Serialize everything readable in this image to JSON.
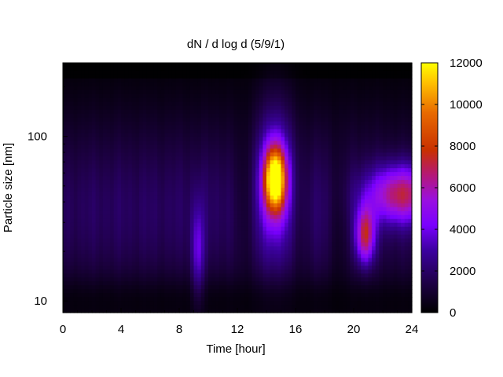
{
  "chart_data": {
    "type": "heatmap",
    "title": "dN / d log d (5/9/1)",
    "xlabel": "Time [hour]",
    "ylabel": "Particle size [nm]",
    "xlim": [
      0,
      24
    ],
    "ylim": [
      8.5,
      280
    ],
    "yscale": "log",
    "x_ticks": [
      0,
      4,
      8,
      12,
      16,
      20,
      24
    ],
    "y_ticks": [
      10,
      100
    ],
    "colorbar": {
      "range": [
        0,
        12000
      ],
      "ticks": [
        0,
        2000,
        4000,
        6000,
        8000,
        10000,
        12000
      ],
      "colormap": "gnuplot (black-purple-red-yellow)"
    },
    "features": [
      {
        "time": 14.6,
        "size_nm": 55,
        "value": 11000
      },
      {
        "time": 20.8,
        "size_nm": 25,
        "value": 6000
      },
      {
        "time": 23.5,
        "size_nm": 45,
        "value": 6000
      }
    ]
  }
}
